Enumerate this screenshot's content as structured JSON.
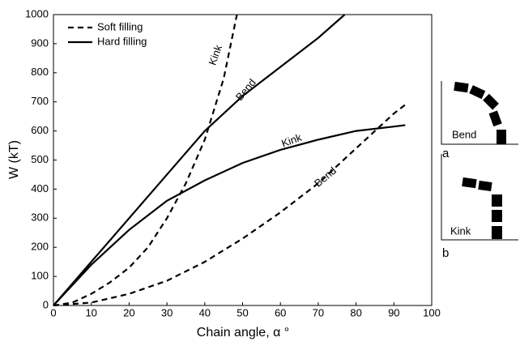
{
  "chart_data": {
    "type": "line",
    "xlabel": "Chain angle, α °",
    "ylabel": "W (kT)",
    "xlim": [
      0,
      100
    ],
    "ylim": [
      0,
      1000
    ],
    "xticks": [
      0,
      10,
      20,
      30,
      40,
      50,
      60,
      70,
      80,
      90,
      100
    ],
    "yticks": [
      0,
      100,
      200,
      300,
      400,
      500,
      600,
      700,
      800,
      900,
      1000
    ],
    "legend": "upper left",
    "series": [
      {
        "name": "Soft filling",
        "color": "#000000",
        "dash": "dashed",
        "curves": [
          {
            "x": [
              0,
              5,
              10,
              15,
              20,
              25,
              30,
              35,
              40,
              45,
              48.5
            ],
            "values": [
              0,
              10,
              40,
              80,
              130,
              200,
              300,
              420,
              570,
              780,
              1000
            ]
          },
          {
            "x": [
              0,
              10,
              20,
              30,
              40,
              50,
              60,
              70,
              80,
              90,
              93
            ],
            "values": [
              0,
              10,
              40,
              85,
              150,
              230,
              320,
              420,
              540,
              660,
              690
            ]
          }
        ]
      },
      {
        "name": "Hard filling",
        "color": "#000000",
        "dash": "solid",
        "curves": [
          {
            "x": [
              0,
              10,
              20,
              30,
              40,
              50,
              60,
              70,
              77
            ],
            "values": [
              0,
              150,
              300,
              450,
              600,
              720,
              820,
              920,
              1000
            ]
          },
          {
            "x": [
              0,
              10,
              20,
              30,
              40,
              50,
              60,
              70,
              80,
              90,
              93
            ],
            "values": [
              0,
              140,
              260,
              360,
              430,
              490,
              535,
              570,
              600,
              615,
              620
            ]
          }
        ]
      }
    ],
    "annotations": [
      {
        "text": "Kink",
        "x": 43,
        "y": 860,
        "angle": -70
      },
      {
        "text": "Bend",
        "x": 51,
        "y": 740,
        "angle": -50
      },
      {
        "text": "Kink",
        "x": 63,
        "y": 565,
        "angle": -20
      },
      {
        "text": "Bend",
        "x": 72,
        "y": 440,
        "angle": -40
      }
    ]
  },
  "insets": [
    {
      "label": "a",
      "caption": "Bend"
    },
    {
      "label": "b",
      "caption": "Kink"
    }
  ]
}
